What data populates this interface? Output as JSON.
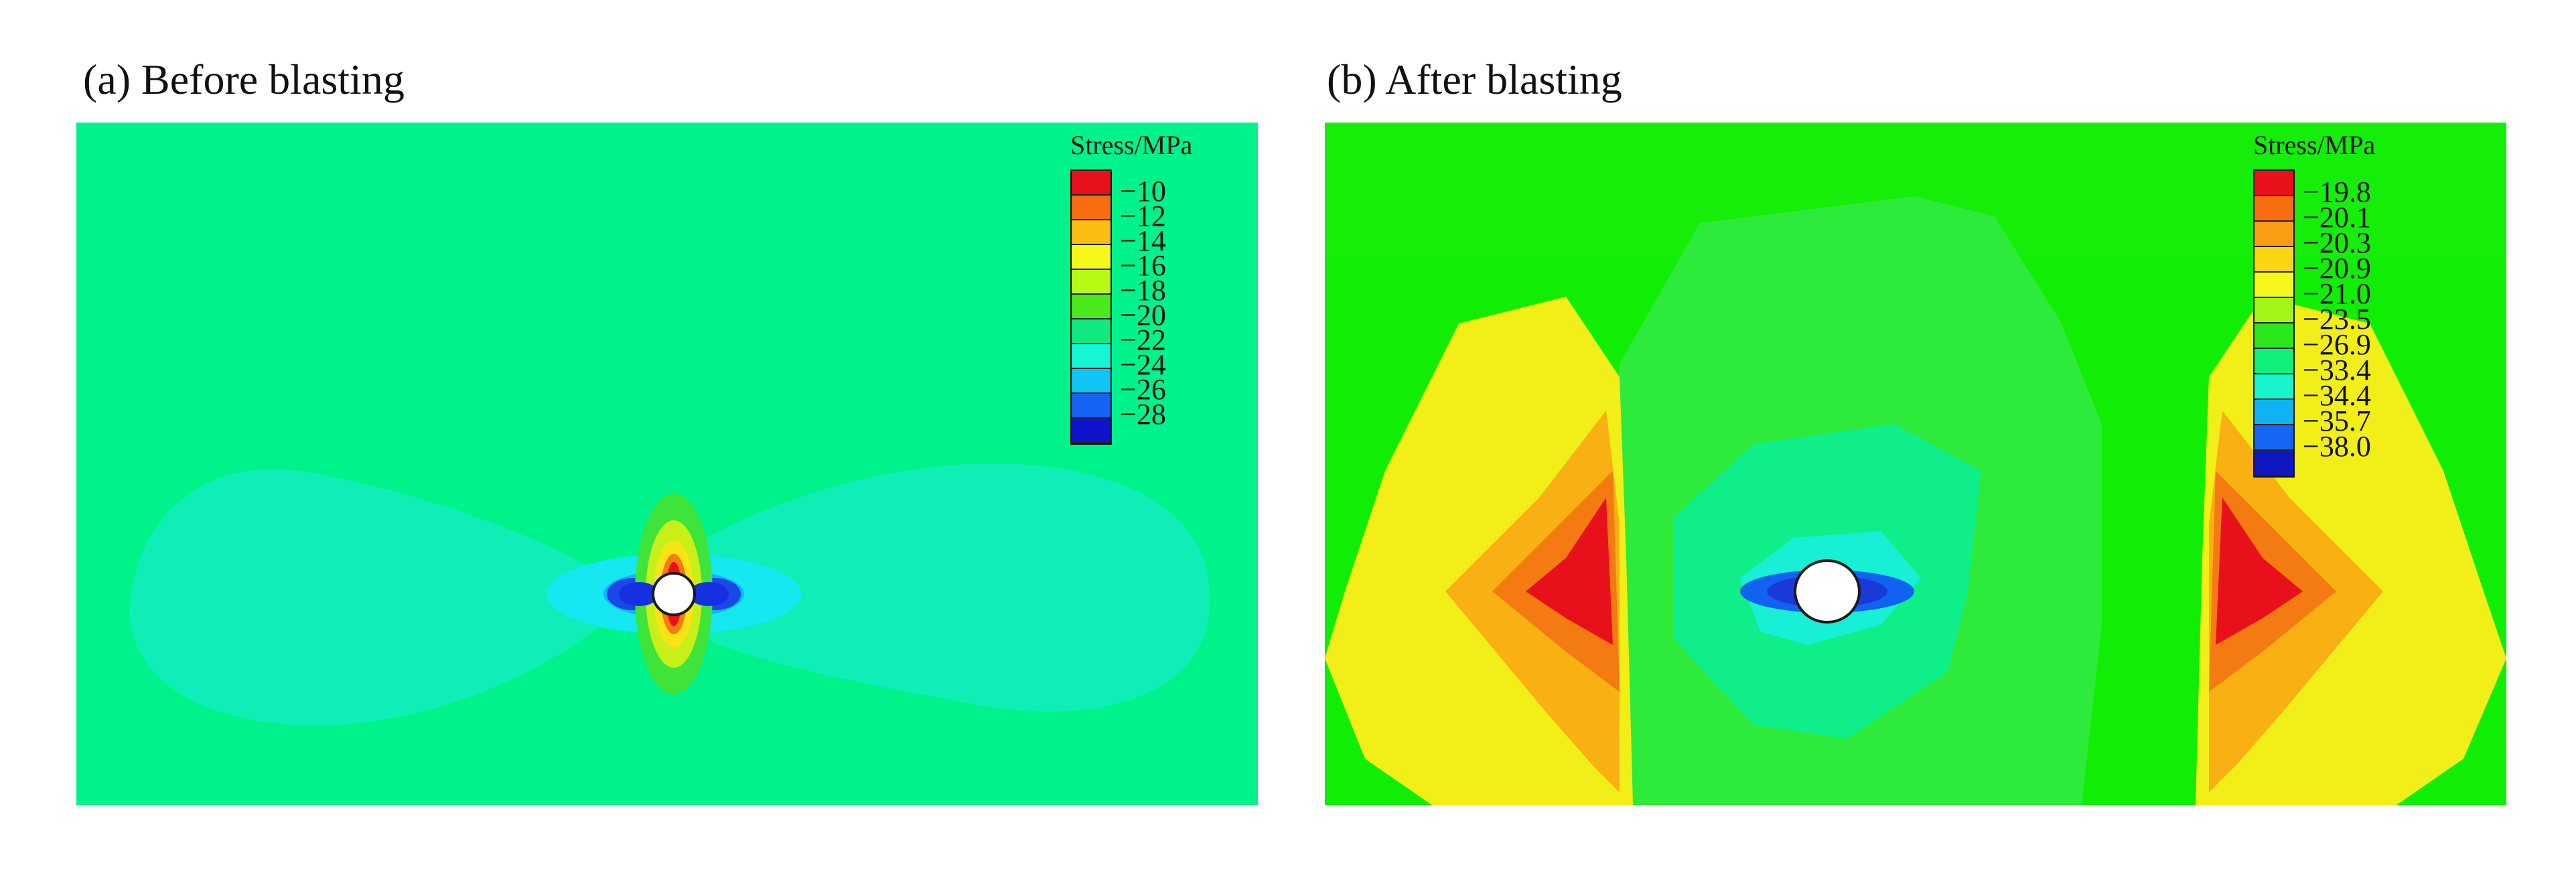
{
  "panels": [
    {
      "title": "(a) Before blasting",
      "legend_title": "Stress/MPa",
      "legend_values": [
        "−10",
        "−12",
        "−14",
        "−16",
        "−18",
        "−20",
        "−22",
        "−24",
        "−26",
        "−28"
      ],
      "legend_colors": [
        "#e8101a",
        "#f86d10",
        "#fbbd11",
        "#f6f81a",
        "#b8f815",
        "#4be81c",
        "#10e880",
        "#16f5d6",
        "#10c4f5",
        "#1562f5",
        "#0f14cc"
      ]
    },
    {
      "title": "(b) After blasting",
      "legend_title": "Stress/MPa",
      "legend_values": [
        "−19.8",
        "−20.1",
        "−20.3",
        "−20.9",
        "−21.0",
        "−23.5",
        "−26.9",
        "−33.4",
        "−34.4",
        "−35.7",
        "−38.0"
      ],
      "legend_colors": [
        "#e8101a",
        "#f86d10",
        "#fa9d12",
        "#fbd512",
        "#f6f81a",
        "#a3f516",
        "#2ce81a",
        "#0ff07a",
        "#16f5cc",
        "#10b4f5",
        "#1566f5",
        "#0f18c0"
      ]
    }
  ]
}
